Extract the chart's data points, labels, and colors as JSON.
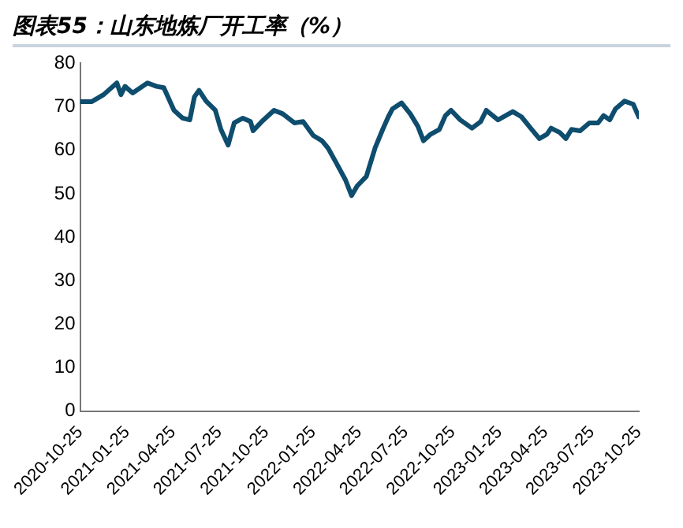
{
  "chart_data": {
    "type": "line",
    "title": "图表55：山东地炼厂开工率（%）",
    "x": [
      "2020-10-25",
      "2020-11-17",
      "2020-12-10",
      "2021-01-05",
      "2021-01-13",
      "2021-01-21",
      "2021-02-05",
      "2021-03-06",
      "2021-03-24",
      "2021-04-07",
      "2021-04-27",
      "2021-05-14",
      "2021-05-28",
      "2021-06-06",
      "2021-06-15",
      "2021-06-29",
      "2021-07-17",
      "2021-07-28",
      "2021-08-11",
      "2021-08-23",
      "2021-09-09",
      "2021-09-24",
      "2021-09-29",
      "2021-10-16",
      "2021-11-09",
      "2021-11-26",
      "2021-12-19",
      "2022-01-05",
      "2022-01-25",
      "2022-02-11",
      "2022-02-23",
      "2022-03-12",
      "2022-03-29",
      "2022-04-10",
      "2022-04-21",
      "2022-05-09",
      "2022-05-26",
      "2022-06-10",
      "2022-06-21",
      "2022-06-29",
      "2022-07-17",
      "2022-08-03",
      "2022-08-18",
      "2022-08-29",
      "2022-09-12",
      "2022-09-29",
      "2022-10-11",
      "2022-10-22",
      "2022-11-09",
      "2022-12-02",
      "2022-12-19",
      "2022-12-30",
      "2023-01-22",
      "2023-02-20",
      "2023-03-09",
      "2023-03-27",
      "2023-04-13",
      "2023-04-28",
      "2023-05-06",
      "2023-05-23",
      "2023-06-04",
      "2023-06-15",
      "2023-07-02",
      "2023-07-20",
      "2023-08-06",
      "2023-08-17",
      "2023-08-29",
      "2023-09-09",
      "2023-09-27",
      "2023-10-14",
      "2023-10-25"
    ],
    "series": [
      {
        "color": "#0e4d6e",
        "values": [
          71.2,
          71.2,
          72.8,
          75.5,
          72.8,
          74.7,
          73.2,
          75.5,
          74.7,
          74.4,
          69.2,
          67.4,
          67.0,
          72.3,
          73.8,
          71.3,
          69.2,
          64.8,
          61.2,
          66.3,
          67.4,
          66.6,
          64.5,
          66.6,
          69.2,
          68.4,
          66.3,
          66.6,
          63.4,
          62.2,
          60.5,
          56.9,
          53.2,
          49.6,
          51.8,
          54.0,
          60.5,
          64.8,
          67.7,
          69.5,
          70.9,
          68.4,
          65.5,
          62.2,
          63.7,
          64.8,
          68.0,
          69.2,
          67.0,
          65.1,
          66.6,
          69.2,
          67.0,
          68.9,
          67.7,
          65.1,
          62.7,
          63.7,
          65.1,
          64.1,
          62.7,
          64.8,
          64.5,
          66.3,
          66.3,
          68.0,
          67.0,
          69.5,
          71.3,
          70.6,
          67.7
        ]
      }
    ],
    "xlim": [
      "2020-10-25",
      "2023-10-25"
    ],
    "xticks": [
      "2020-10-25",
      "2021-01-25",
      "2021-04-25",
      "2021-07-25",
      "2021-10-25",
      "2022-01-25",
      "2022-04-25",
      "2022-07-25",
      "2022-10-25",
      "2023-01-25",
      "2023-04-25",
      "2023-07-25",
      "2023-10-25"
    ],
    "ylim": [
      0,
      80
    ],
    "yticks": [
      0,
      10,
      20,
      30,
      40,
      50,
      60,
      70,
      80
    ],
    "marker": "none",
    "line_style": "solid"
  }
}
